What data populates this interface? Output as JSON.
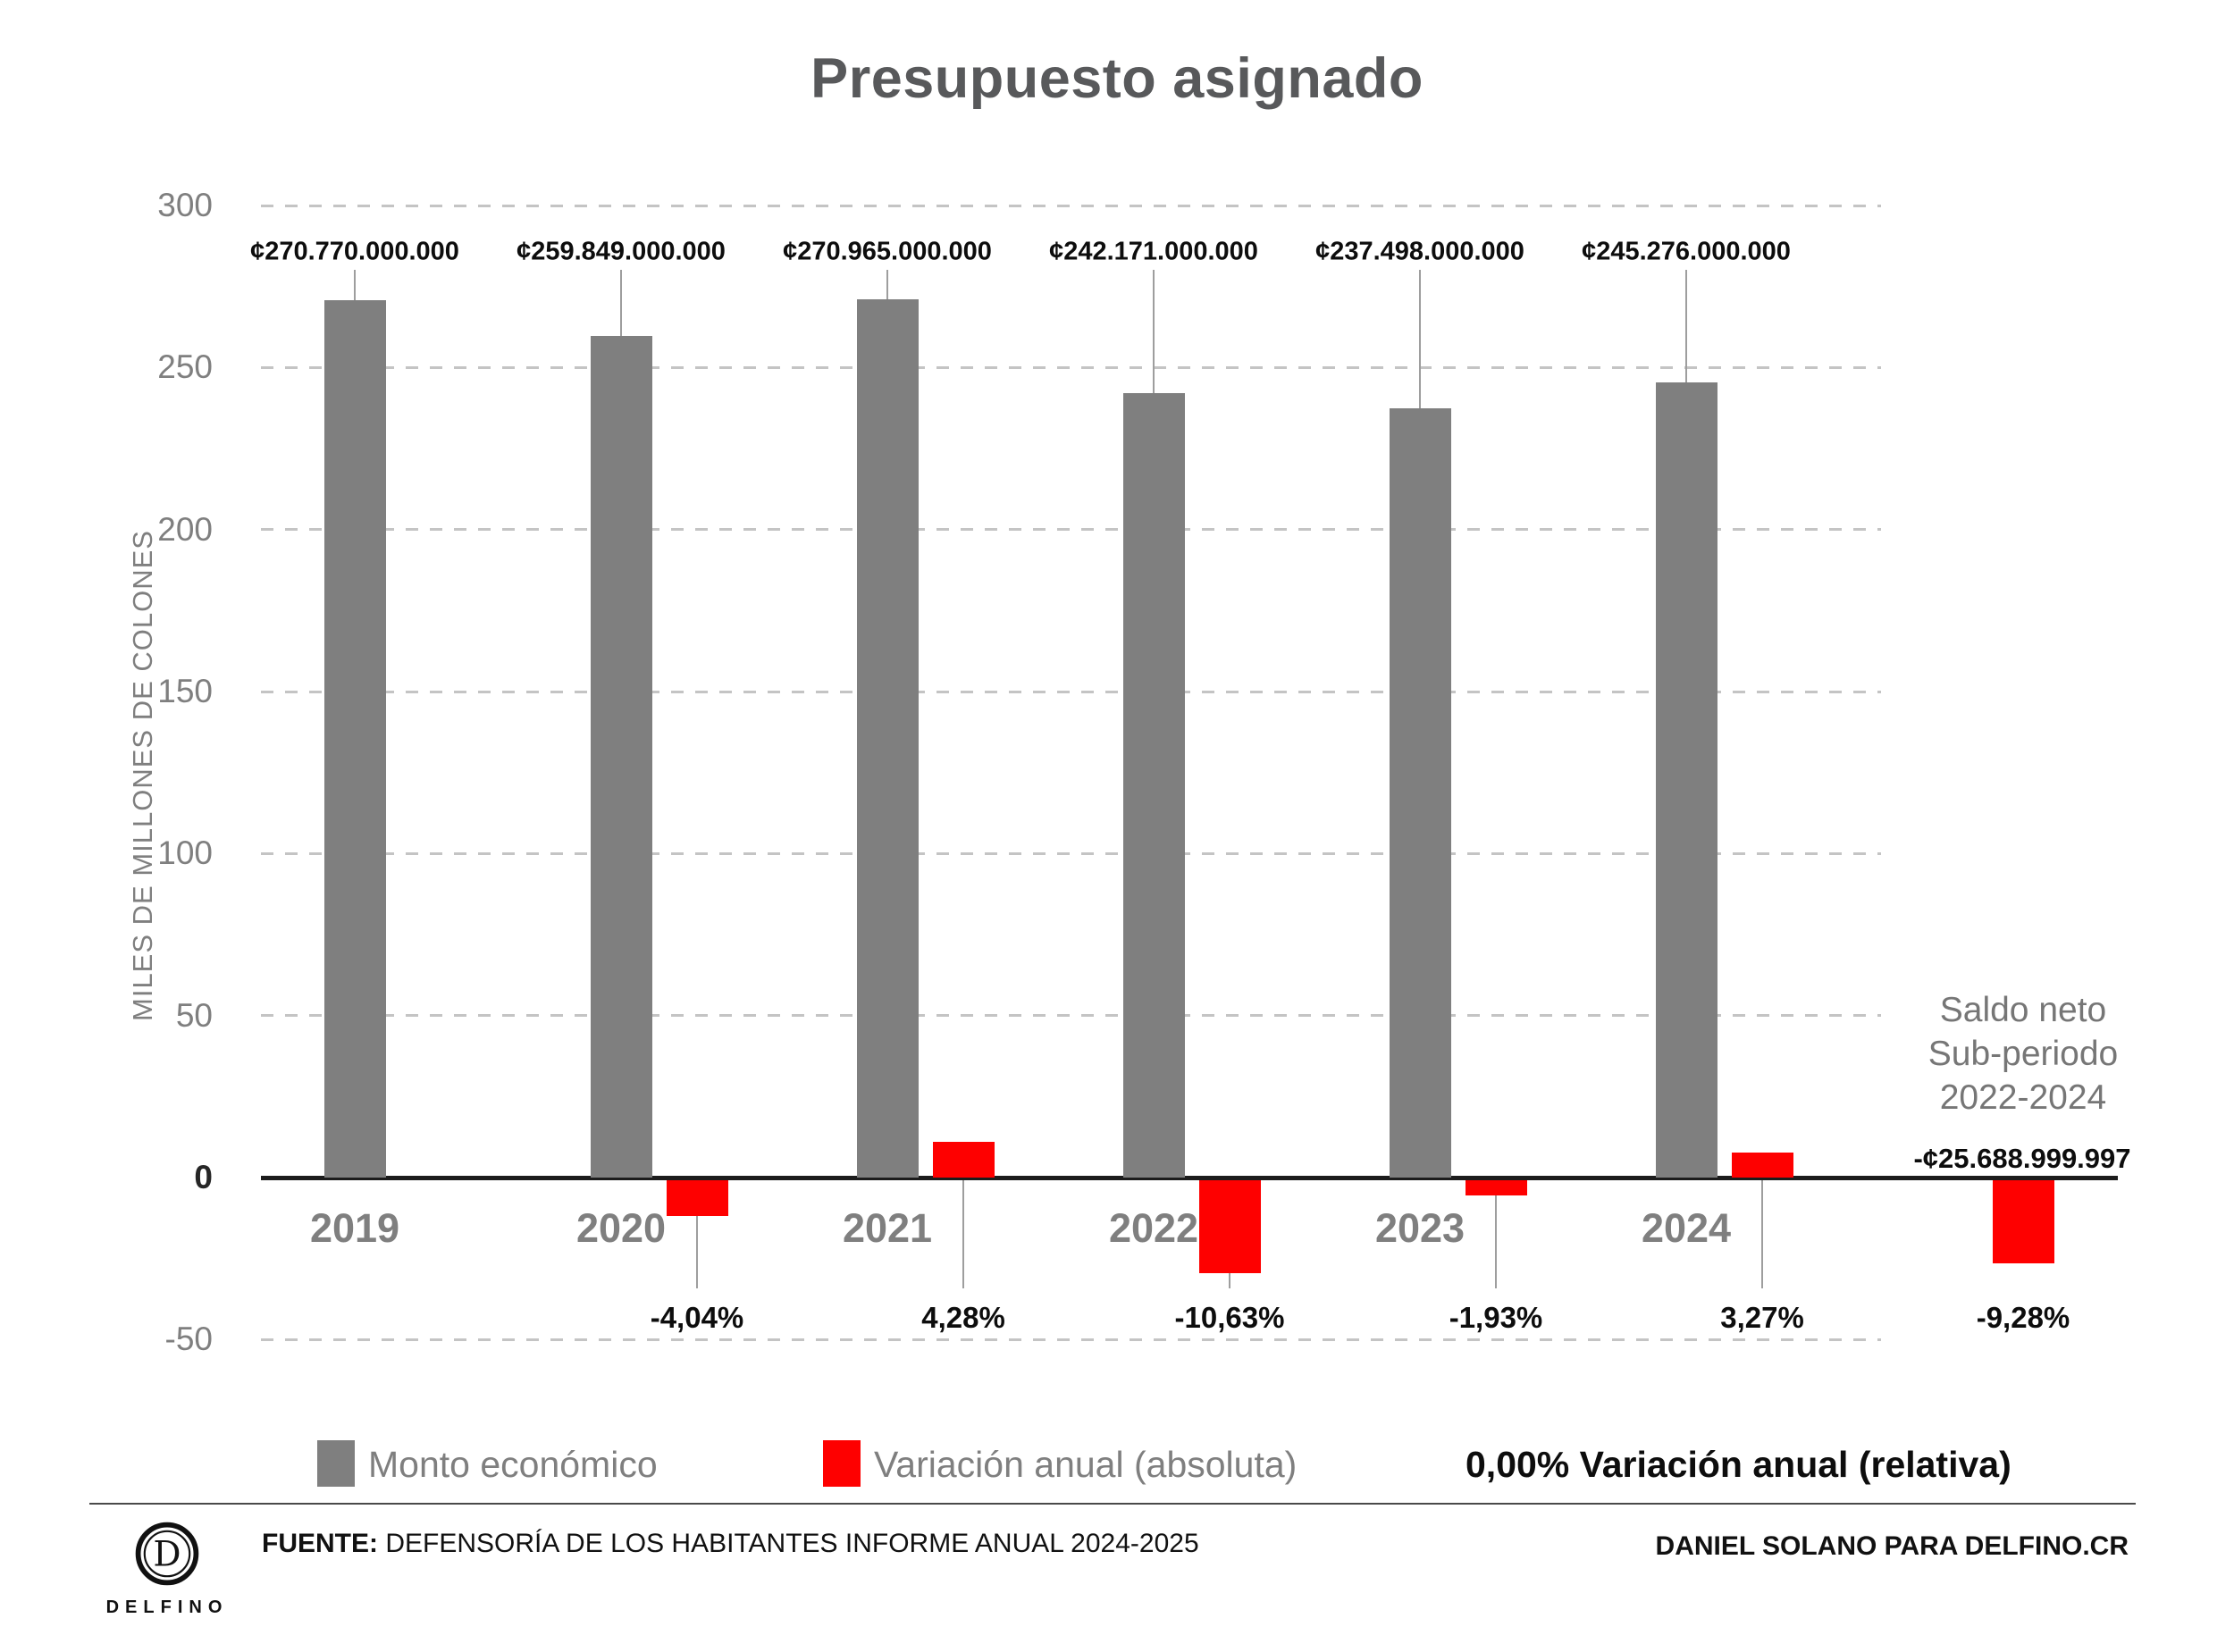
{
  "title": "Presupuesto asignado",
  "chart_data": {
    "type": "bar",
    "title": "Presupuesto asignado",
    "ylabel": "MILES DE MILLONES DE COLONES",
    "ylim": [
      -50,
      300
    ],
    "yticks": [
      300,
      250,
      200,
      150,
      100,
      50,
      0,
      -50
    ],
    "grid": "horizontal-dashed",
    "unit": "miles de millones de colones",
    "categories": [
      "2019",
      "2020",
      "2021",
      "2022",
      "2023",
      "2024"
    ],
    "series": [
      {
        "name": "Monto económico",
        "color": "#7f7f7f",
        "values": [
          270.77,
          259.849,
          270.965,
          242.171,
          237.498,
          245.276
        ],
        "labels": [
          "¢270.770.000.000",
          "¢259.849.000.000",
          "¢270.965.000.000",
          "¢242.171.000.000",
          "¢237.498.000.000",
          "¢245.276.000.000"
        ]
      },
      {
        "name": "Variación anual (absoluta)",
        "color": "#fe0000",
        "values": [
          null,
          -10.921,
          11.116,
          -28.794,
          -4.673,
          7.778
        ],
        "labels": [
          null,
          "-4,04%",
          "4,28%",
          "-10,63%",
          "-1,93%",
          "3,27%"
        ]
      }
    ],
    "net_balance": {
      "label_lines": [
        "Saldo neto",
        "Sub-periodo",
        "2022-2024"
      ],
      "value": -25.689,
      "value_label": "-¢25.688.999.997",
      "pct_label": "-9,28%"
    }
  },
  "legend": {
    "monto": "Monto económico",
    "absoluta": "Variación anual (absoluta)",
    "relativa": "0,00% Variación anual (relativa)"
  },
  "colors": {
    "bar_gray": "#7f7f7f",
    "bar_red": "#fe0000",
    "title_gray": "#58595b",
    "axis_gray": "#7f7f7f"
  },
  "footer": {
    "fuente_label": "FUENTE:",
    "fuente_text": "DEFENSORÍA DE LOS HABITANTES INFORME ANUAL 2024-2025",
    "credit": "DANIEL SOLANO PARA DELFINO.CR",
    "logo_letter": "D",
    "logo_text": "DELFINO"
  }
}
